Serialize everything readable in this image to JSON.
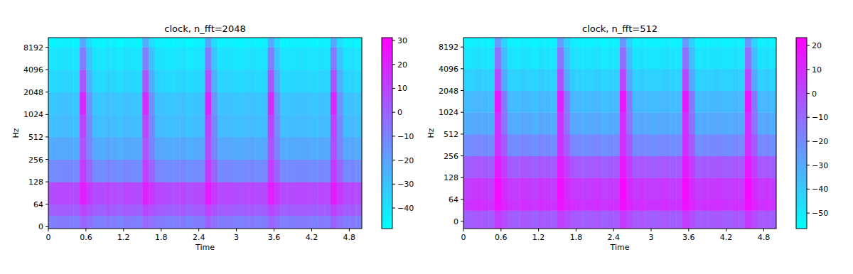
{
  "chart_data": [
    {
      "type": "heatmap",
      "title": "clock, n_fft=2048",
      "x_label": "Time",
      "y_label": "Hz",
      "log": "y",
      "xlim": [
        0,
        5
      ],
      "ylim": [
        -5.4,
        11025
      ],
      "xticks": [
        0,
        0.6,
        1.2,
        1.8,
        2.4,
        3,
        3.6,
        4.2,
        4.8
      ],
      "yticks": [
        0,
        64,
        128,
        256,
        512,
        1024,
        2048,
        4096,
        8192
      ],
      "x_edges": [
        0,
        0.1,
        0.2,
        0.3,
        0.4,
        0.5,
        0.6,
        0.7,
        0.8,
        0.9,
        1,
        1.1,
        1.2,
        1.3,
        1.4,
        1.5,
        1.6,
        1.7,
        1.8,
        1.9,
        2,
        2.1,
        2.2,
        2.3,
        2.4,
        2.5,
        2.6,
        2.7,
        2.8,
        2.9,
        3,
        3.1,
        3.2,
        3.3,
        3.4,
        3.5,
        3.6,
        3.7,
        3.8,
        3.9,
        4,
        4.1,
        4.2,
        4.3,
        4.4,
        4.5,
        4.6,
        4.7,
        4.8,
        4.9,
        5
      ],
      "y_edges": [
        -5.4,
        32,
        64,
        128,
        256,
        512,
        1024,
        2048,
        4096,
        8192,
        11025
      ],
      "cells": [
        [
          -9,
          -8,
          -7,
          -8,
          -9,
          0,
          -4,
          -8,
          -9,
          -7,
          -8,
          -10,
          -7,
          -8,
          -9,
          -1,
          -4,
          -7,
          -8,
          -9,
          -8,
          -7,
          -10,
          -8,
          -8,
          1,
          -4,
          -8,
          -7,
          -8,
          -9,
          -8,
          -7,
          -9,
          -8,
          0,
          -4,
          -9,
          -8,
          -8,
          -7,
          -8,
          -9,
          -7,
          -8,
          1,
          -4,
          -8,
          -7,
          -9
        ],
        [
          1,
          2,
          3,
          2,
          1,
          10,
          6,
          2,
          1,
          3,
          2,
          0,
          3,
          2,
          1,
          9,
          6,
          3,
          2,
          1,
          2,
          3,
          0,
          2,
          2,
          11,
          6,
          2,
          3,
          2,
          1,
          2,
          3,
          1,
          2,
          10,
          6,
          1,
          2,
          2,
          3,
          2,
          1,
          3,
          2,
          11,
          6,
          2,
          3,
          1
        ],
        [
          7,
          8,
          9,
          8,
          7,
          22,
          14,
          8,
          7,
          9,
          8,
          6,
          9,
          8,
          7,
          21,
          14,
          9,
          8,
          7,
          8,
          9,
          6,
          8,
          8,
          23,
          14,
          8,
          9,
          8,
          7,
          8,
          9,
          7,
          8,
          22,
          14,
          7,
          8,
          8,
          9,
          8,
          7,
          9,
          8,
          23,
          14,
          8,
          9,
          7
        ],
        [
          -13,
          -12,
          -11,
          -12,
          -13,
          12,
          0,
          -12,
          -13,
          -11,
          -12,
          -14,
          -11,
          -12,
          -13,
          11,
          0,
          -11,
          -12,
          -13,
          -12,
          -11,
          -14,
          -12,
          -12,
          13,
          0,
          -12,
          -11,
          -12,
          -13,
          -12,
          -11,
          -13,
          -12,
          12,
          0,
          -13,
          -12,
          -12,
          -11,
          -12,
          -13,
          -11,
          -12,
          13,
          0,
          -12,
          -11,
          -13
        ],
        [
          -23,
          -22,
          -21,
          -22,
          -23,
          6,
          -10,
          -22,
          -23,
          -21,
          -22,
          -24,
          -21,
          -22,
          -23,
          5,
          -10,
          -21,
          -22,
          -23,
          -22,
          -21,
          -24,
          -22,
          -22,
          7,
          -10,
          -22,
          -21,
          -22,
          -23,
          -22,
          -21,
          -23,
          -22,
          6,
          -10,
          -23,
          -22,
          -22,
          -21,
          -22,
          -23,
          -21,
          -22,
          7,
          -10,
          -22,
          -21,
          -23
        ],
        [
          -29,
          -28,
          -27,
          -28,
          -29,
          10,
          -12,
          -28,
          -29,
          -27,
          -28,
          -30,
          -27,
          -28,
          -29,
          9,
          -12,
          -27,
          -28,
          -29,
          -28,
          -27,
          -30,
          -28,
          -28,
          11,
          -12,
          -28,
          -27,
          -28,
          -29,
          -28,
          -27,
          -29,
          -28,
          10,
          -12,
          -29,
          -28,
          -28,
          -27,
          -28,
          -29,
          -27,
          -28,
          11,
          -12,
          -28,
          -27,
          -29
        ],
        [
          -31,
          -30,
          -29,
          -30,
          -31,
          18,
          -15,
          -30,
          -31,
          -29,
          -30,
          -32,
          -29,
          -30,
          -31,
          17,
          -15,
          -29,
          -30,
          -31,
          -30,
          -29,
          -32,
          -30,
          -30,
          19,
          -15,
          -30,
          -29,
          -30,
          -31,
          -30,
          -29,
          -31,
          -30,
          18,
          -15,
          -31,
          -30,
          -30,
          -29,
          -30,
          -31,
          -29,
          -30,
          19,
          -15,
          -30,
          -29,
          -31
        ],
        [
          -37,
          -36,
          -35,
          -36,
          -37,
          5,
          -24,
          -36,
          -37,
          -35,
          -36,
          -38,
          -35,
          -36,
          -37,
          4,
          -24,
          -35,
          -36,
          -37,
          -36,
          -35,
          -38,
          -36,
          -36,
          6,
          -24,
          -36,
          -35,
          -36,
          -37,
          -36,
          -35,
          -37,
          -36,
          5,
          -24,
          -37,
          -36,
          -36,
          -35,
          -36,
          -37,
          -35,
          -36,
          6,
          -24,
          -36,
          -35,
          -37
        ],
        [
          -41,
          -40,
          -39,
          -40,
          -41,
          -8,
          -30,
          -40,
          -41,
          -39,
          -40,
          -42,
          -39,
          -40,
          -41,
          -9,
          -30,
          -39,
          -40,
          -41,
          -40,
          -39,
          -42,
          -40,
          -40,
          -7,
          -30,
          -40,
          -39,
          -40,
          -41,
          -40,
          -39,
          -41,
          -40,
          -8,
          -30,
          -41,
          -40,
          -40,
          -39,
          -40,
          -41,
          -39,
          -40,
          -7,
          -30,
          -40,
          -39,
          -41
        ],
        [
          -46,
          -45,
          -44,
          -45,
          -46,
          -22,
          -38,
          -45,
          -46,
          -44,
          -45,
          -47,
          -44,
          -45,
          -46,
          -23,
          -38,
          -44,
          -45,
          -46,
          -45,
          -44,
          -47,
          -45,
          -45,
          -21,
          -38,
          -45,
          -44,
          -45,
          -46,
          -45,
          -44,
          -46,
          -45,
          -22,
          -38,
          -46,
          -45,
          -45,
          -44,
          -45,
          -46,
          -44,
          -45,
          -21,
          -38,
          -45,
          -44,
          -46
        ]
      ],
      "colorbar": {
        "range": [
          -48.6,
          31.2
        ],
        "ticks": [
          30,
          20,
          10,
          0,
          {
            "value": -10,
            "label": "−10"
          },
          {
            "value": -20,
            "label": "−20"
          },
          {
            "value": -30,
            "label": "−30"
          },
          {
            "value": -40,
            "label": "−40"
          }
        ]
      }
    },
    {
      "type": "heatmap",
      "title": "clock, n_fft=512",
      "x_label": "Time",
      "y_label": "Hz",
      "log": "y",
      "xlim": [
        0,
        5
      ],
      "ylim": [
        -21.5,
        11025
      ],
      "xticks": [
        0,
        0.6,
        1.2,
        1.8,
        2.4,
        3,
        3.6,
        4.2,
        4.8
      ],
      "yticks": [
        0,
        64,
        128,
        256,
        512,
        1024,
        2048,
        4096,
        8192
      ],
      "x_edges": [
        0,
        0.1,
        0.2,
        0.3,
        0.4,
        0.5,
        0.6,
        0.7,
        0.8,
        0.9,
        1,
        1.1,
        1.2,
        1.3,
        1.4,
        1.5,
        1.6,
        1.7,
        1.8,
        1.9,
        2,
        2.1,
        2.2,
        2.3,
        2.4,
        2.5,
        2.6,
        2.7,
        2.8,
        2.9,
        3,
        3.1,
        3.2,
        3.3,
        3.4,
        3.5,
        3.6,
        3.7,
        3.8,
        3.9,
        4,
        4.1,
        4.2,
        4.3,
        4.4,
        4.5,
        4.6,
        4.7,
        4.8,
        4.9,
        5
      ],
      "y_edges": [
        -21.5,
        32,
        64,
        128,
        256,
        512,
        1024,
        2048,
        4096,
        8192,
        11025
      ],
      "cells": [
        [
          -6,
          -5,
          -4,
          -5,
          -6,
          5,
          0,
          -5,
          -6,
          -4,
          -5,
          -7,
          -4,
          -5,
          -6,
          4,
          0,
          -4,
          -5,
          -6,
          -5,
          -4,
          -7,
          -5,
          -5,
          6,
          0,
          -5,
          -4,
          -5,
          -6,
          -5,
          -4,
          -6,
          -5,
          5,
          0,
          -6,
          -5,
          -5,
          -4,
          -5,
          -6,
          -4,
          -5,
          6,
          0,
          -5,
          -4,
          -6
        ],
        [
          7,
          8,
          9,
          8,
          7,
          18,
          12,
          8,
          7,
          9,
          8,
          6,
          9,
          8,
          7,
          17,
          12,
          9,
          8,
          7,
          8,
          9,
          6,
          8,
          8,
          19,
          12,
          8,
          9,
          8,
          7,
          8,
          9,
          7,
          8,
          18,
          12,
          7,
          8,
          8,
          9,
          8,
          7,
          9,
          8,
          19,
          12,
          8,
          9,
          7
        ],
        [
          4,
          5,
          6,
          5,
          4,
          20,
          10,
          5,
          4,
          6,
          5,
          3,
          6,
          5,
          4,
          19,
          10,
          6,
          5,
          4,
          5,
          6,
          3,
          5,
          5,
          21,
          10,
          5,
          6,
          5,
          4,
          5,
          6,
          4,
          5,
          20,
          10,
          4,
          5,
          5,
          6,
          5,
          4,
          6,
          5,
          21,
          10,
          5,
          6,
          4
        ],
        [
          -6,
          -5,
          -4,
          -5,
          -6,
          15,
          5,
          -5,
          -6,
          -4,
          -5,
          -7,
          -4,
          -5,
          -6,
          14,
          5,
          -4,
          -5,
          -6,
          -5,
          -4,
          -7,
          -5,
          -5,
          16,
          5,
          -5,
          -4,
          -5,
          -6,
          -5,
          -4,
          -6,
          -5,
          15,
          5,
          -6,
          -5,
          -5,
          -4,
          -5,
          -6,
          -4,
          -5,
          16,
          5,
          -5,
          -4,
          -6
        ],
        [
          -21,
          -20,
          -19,
          -20,
          -21,
          8,
          -5,
          -20,
          -21,
          -19,
          -20,
          -22,
          -19,
          -20,
          -21,
          7,
          -5,
          -19,
          -20,
          -21,
          -20,
          -19,
          -22,
          -20,
          -20,
          9,
          -5,
          -20,
          -19,
          -20,
          -21,
          -20,
          -19,
          -21,
          -20,
          8,
          -5,
          -21,
          -20,
          -20,
          -19,
          -20,
          -21,
          -19,
          -20,
          9,
          -5,
          -20,
          -19,
          -21
        ],
        [
          -31,
          -30,
          -29,
          -30,
          -31,
          8,
          -12,
          -30,
          -31,
          -29,
          -30,
          -32,
          -29,
          -30,
          -31,
          7,
          -12,
          -29,
          -30,
          -31,
          -30,
          -29,
          -32,
          -30,
          -30,
          9,
          -12,
          -30,
          -29,
          -30,
          -31,
          -30,
          -29,
          -31,
          -30,
          8,
          -12,
          -31,
          -30,
          -30,
          -29,
          -30,
          -31,
          -29,
          -30,
          9,
          -12,
          -30,
          -29,
          -31
        ],
        [
          -36,
          -35,
          -34,
          -35,
          -36,
          15,
          -15,
          -35,
          -36,
          -34,
          -35,
          -37,
          -34,
          -35,
          -36,
          14,
          -15,
          -34,
          -35,
          -36,
          -35,
          -34,
          -37,
          -35,
          -35,
          16,
          -15,
          -35,
          -34,
          -35,
          -36,
          -35,
          -34,
          -36,
          -35,
          15,
          -15,
          -36,
          -35,
          -35,
          -34,
          -35,
          -36,
          -34,
          -35,
          16,
          -15,
          -35,
          -34,
          -36
        ],
        [
          -43,
          -42,
          -41,
          -42,
          -43,
          0,
          -30,
          -42,
          -43,
          -41,
          -42,
          -44,
          -41,
          -42,
          -43,
          -1,
          -30,
          -41,
          -42,
          -43,
          -42,
          -41,
          -44,
          -42,
          -42,
          1,
          -30,
          -42,
          -41,
          -42,
          -43,
          -42,
          -41,
          -43,
          -42,
          0,
          -30,
          -43,
          -42,
          -42,
          -41,
          -42,
          -43,
          -41,
          -42,
          1,
          -30,
          -42,
          -41,
          -43
        ],
        [
          -49,
          -48,
          -47,
          -48,
          -49,
          -12,
          -36,
          -48,
          -49,
          -47,
          -48,
          -50,
          -47,
          -48,
          -49,
          -13,
          -36,
          -47,
          -48,
          -49,
          -48,
          -47,
          -50,
          -48,
          -48,
          -11,
          -36,
          -48,
          -47,
          -48,
          -49,
          -48,
          -47,
          -49,
          -48,
          -12,
          -36,
          -49,
          -48,
          -48,
          -47,
          -48,
          -49,
          -47,
          -48,
          -11,
          -36,
          -48,
          -47,
          -49
        ],
        [
          -53,
          -52,
          -51,
          -52,
          -53,
          -25,
          -42,
          -52,
          -53,
          -51,
          -52,
          -54,
          -51,
          -52,
          -53,
          -26,
          -42,
          -51,
          -52,
          -53,
          -52,
          -51,
          -54,
          -52,
          -52,
          -24,
          -42,
          -52,
          -51,
          -52,
          -53,
          -52,
          -51,
          -53,
          -52,
          -25,
          -42,
          -53,
          -52,
          -52,
          -51,
          -52,
          -53,
          -51,
          -52,
          -24,
          -42,
          -52,
          -51,
          -53
        ]
      ],
      "colorbar": {
        "range": [
          -56.5,
          23.3
        ],
        "ticks": [
          20,
          10,
          0,
          {
            "value": -10,
            "label": "−10"
          },
          {
            "value": -20,
            "label": "−20"
          },
          {
            "value": -30,
            "label": "−30"
          },
          {
            "value": -40,
            "label": "−40"
          },
          {
            "value": -50,
            "label": "−50"
          }
        ]
      }
    }
  ]
}
